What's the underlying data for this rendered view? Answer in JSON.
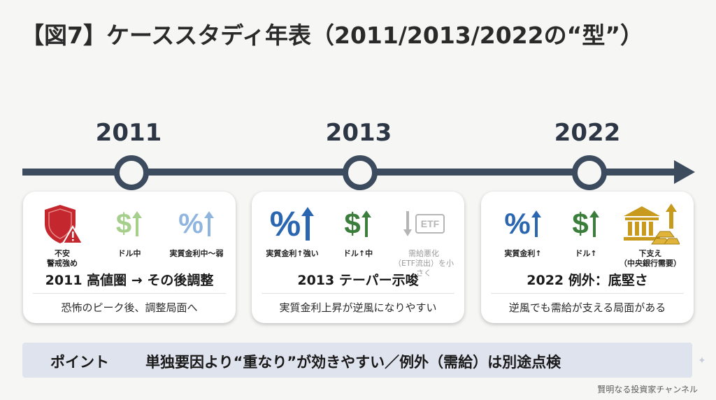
{
  "title": "【図7】ケーススタディ年表（2011/2013/2022の“型”）",
  "years": [
    "2011",
    "2013",
    "2022"
  ],
  "colors": {
    "timeline": "#3d4b5e",
    "red": "#c4272d",
    "light_green": "#a6cf8e",
    "light_blue": "#8fb5df",
    "blue": "#2b66b1",
    "green": "#3b7d3a",
    "gray": "#b5b5b5",
    "gold": "#c89a1e",
    "point_bg": "#dfe3ee"
  },
  "cards": [
    {
      "icons": [
        {
          "name": "shield-warning-icon",
          "label": "不安\n警戒強め"
        },
        {
          "name": "dollar-up-icon",
          "label": "ドル中"
        },
        {
          "name": "percent-up-icon",
          "label": "実質金利中〜弱"
        }
      ],
      "headline": "2011 高値圏 → その後調整",
      "subtext": "恐怖のピーク後、調整局面へ"
    },
    {
      "icons": [
        {
          "name": "percent-up-icon",
          "label": "実質金利↑強い"
        },
        {
          "name": "dollar-up-icon",
          "label": "ドル↑中"
        },
        {
          "name": "etf-down-icon",
          "label": "需給悪化\n（ETF流出）を小さく",
          "glyph": "ETF"
        }
      ],
      "headline": "2013 テーパー示唆",
      "subtext": "実質金利上昇が逆風になりやすい"
    },
    {
      "icons": [
        {
          "name": "percent-up-icon",
          "label": "実質金利↑"
        },
        {
          "name": "dollar-up-icon",
          "label": "ドル↑"
        },
        {
          "name": "bank-gold-icon",
          "label": "下支え\n（中央銀行需要）"
        }
      ],
      "headline": "2022 例外：底堅さ",
      "subtext": "逆風でも需給が支える局面がある"
    }
  ],
  "point": {
    "label": "ポイント",
    "text": "単独要因より“重なり”が効きやすい／例外（需給）は別途点検"
  },
  "footer": "賢明なる投資家チャンネル"
}
